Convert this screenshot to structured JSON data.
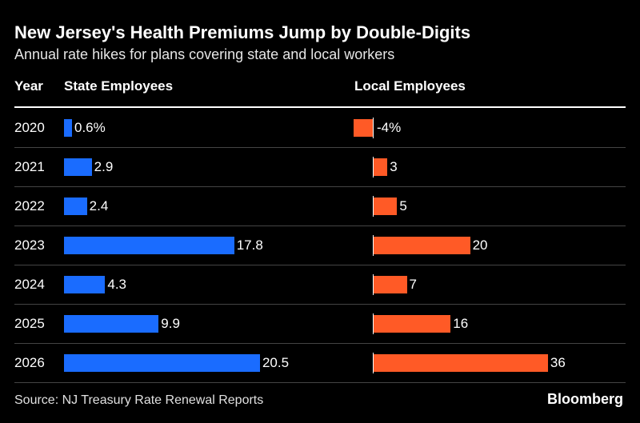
{
  "chart_data": {
    "type": "bar",
    "title": "New Jersey's Health Premiums Jump by Double-Digits",
    "subtitle": "Annual rate hikes for plans covering state and local workers",
    "category_header": "Year",
    "categories": [
      "2020",
      "2021",
      "2022",
      "2023",
      "2024",
      "2025",
      "2026"
    ],
    "series": [
      {
        "name": "State Employees",
        "values": [
          0.6,
          2.9,
          2.4,
          17.8,
          4.3,
          9.9,
          20.5
        ],
        "labels": [
          "0.6%",
          "2.9",
          "2.4",
          "17.8",
          "4.3",
          "9.9",
          "20.5"
        ],
        "color": "#1a6cff"
      },
      {
        "name": "Local Employees",
        "values": [
          -4,
          3,
          5,
          20,
          7,
          16,
          36
        ],
        "labels": [
          "-4%",
          "3",
          "5",
          "20",
          "7",
          "16",
          "36"
        ],
        "color": "#ff5a26"
      }
    ],
    "source": "Source: NJ Treasury Rate Renewal Reports",
    "brand": "Bloomberg",
    "grid": false,
    "legend": "none"
  }
}
